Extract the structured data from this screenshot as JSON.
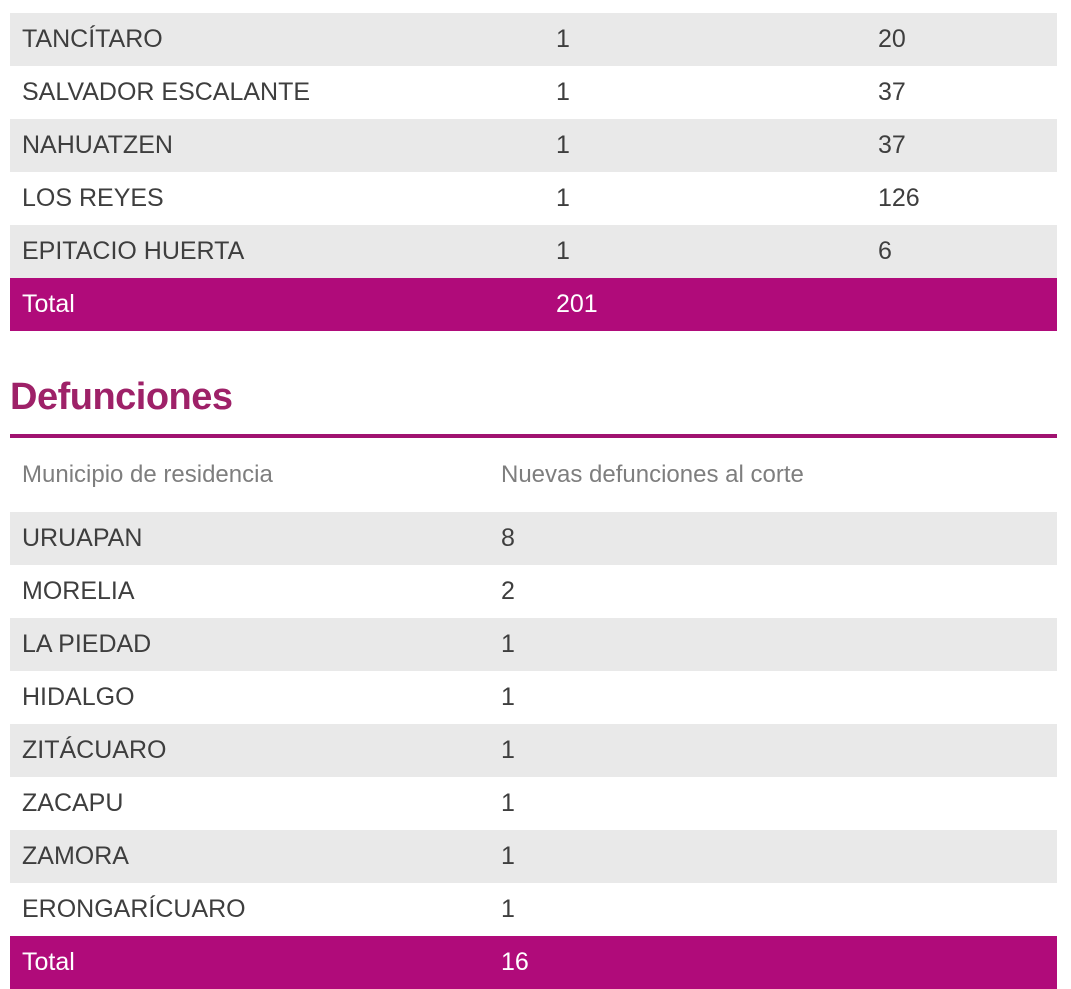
{
  "colors": {
    "accent_magenta_bar": "#b00b7a",
    "heading_purple": "#9e2168",
    "rule_magenta": "#a01270",
    "row_alt_gray": "#e9e9e9",
    "body_text": "#3e3e3e",
    "header_text_gray": "#7e7e7e",
    "total_text": "#ffffff"
  },
  "top_table": {
    "rows": [
      {
        "municipio": "TANCÍTARO",
        "col2": "1",
        "col3": "20"
      },
      {
        "municipio": "SALVADOR ESCALANTE",
        "col2": "1",
        "col3": "37"
      },
      {
        "municipio": "NAHUATZEN",
        "col2": "1",
        "col3": "37"
      },
      {
        "municipio": "LOS REYES",
        "col2": "1",
        "col3": "126"
      },
      {
        "municipio": "EPITACIO HUERTA",
        "col2": "1",
        "col3": "6"
      }
    ],
    "total": {
      "label": "Total",
      "value": "201"
    }
  },
  "defunciones": {
    "heading": "Defunciones",
    "columns": [
      "Municipio de residencia",
      "Nuevas defunciones al corte"
    ],
    "rows": [
      {
        "municipio": "URUAPAN",
        "value": "8"
      },
      {
        "municipio": "MORELIA",
        "value": "2"
      },
      {
        "municipio": "LA PIEDAD",
        "value": "1"
      },
      {
        "municipio": "HIDALGO",
        "value": "1"
      },
      {
        "municipio": "ZITÁCUARO",
        "value": "1"
      },
      {
        "municipio": "ZACAPU",
        "value": "1"
      },
      {
        "municipio": "ZAMORA",
        "value": "1"
      },
      {
        "municipio": "ERONGARÍCUARO",
        "value": "1"
      }
    ],
    "total": {
      "label": "Total",
      "value": "16"
    }
  }
}
